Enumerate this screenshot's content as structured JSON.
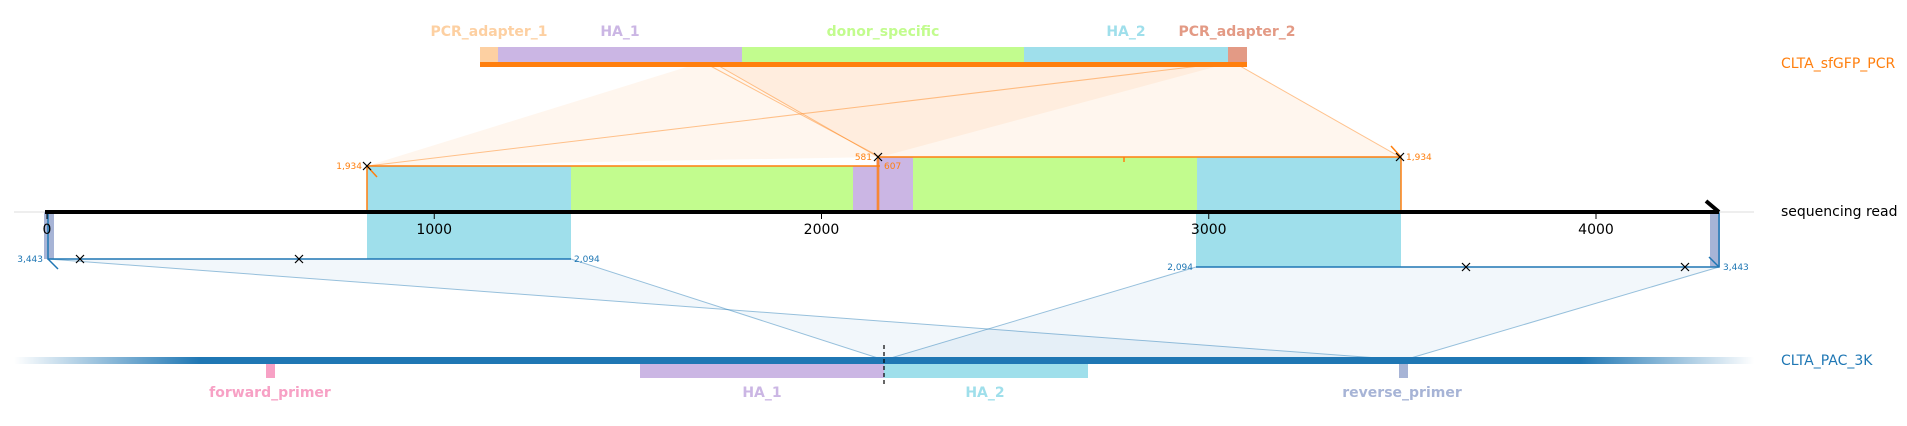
{
  "colors": {
    "pcr_adapter_1": "#fdd0a2",
    "ha_1": "#cbb6e4",
    "donor_specific": "#c2fc8e",
    "ha_2": "#9fdfeb",
    "pcr_adapter_2": "#e39a85",
    "sfgfp_pcr": "#ff7f0e",
    "pac_3k": "#1f77b4",
    "forward_primer": "#f7a1c5",
    "reverse_primer": "#a7b4d6",
    "read": "#000000"
  },
  "top_features": [
    {
      "name": "PCR_adapter_1",
      "color_key": "pcr_adapter_1"
    },
    {
      "name": "HA_1",
      "color_key": "ha_1"
    },
    {
      "name": "donor_specific",
      "color_key": "donor_specific"
    },
    {
      "name": "HA_2",
      "color_key": "ha_2"
    },
    {
      "name": "PCR_adapter_2",
      "color_key": "pcr_adapter_2"
    }
  ],
  "bottom_features": [
    {
      "name": "forward_primer",
      "color_key": "forward_primer"
    },
    {
      "name": "HA_1",
      "color_key": "ha_1"
    },
    {
      "name": "HA_2",
      "color_key": "ha_2"
    },
    {
      "name": "reverse_primer",
      "color_key": "reverse_primer"
    }
  ],
  "references": {
    "top": "CLTA_sfGFP_PCR",
    "middle": "sequencing read",
    "bottom": "CLTA_PAC_3K"
  },
  "read_axis": {
    "min": 0,
    "max": 4330,
    "ticks": [
      0,
      1000,
      2000,
      3000,
      4000
    ],
    "tick_labels": [
      "0",
      "1000",
      "2000",
      "3000",
      "4000"
    ]
  },
  "coordinate_labels": {
    "top_left_start": "1,934",
    "top_mid_end": "581",
    "top_mid_start": "607",
    "top_right_end": "1,934",
    "bottom_left_start": "3,443",
    "bottom_left_end": "2,094",
    "bottom_right_start": "2,094",
    "bottom_right_end": "3,443"
  }
}
